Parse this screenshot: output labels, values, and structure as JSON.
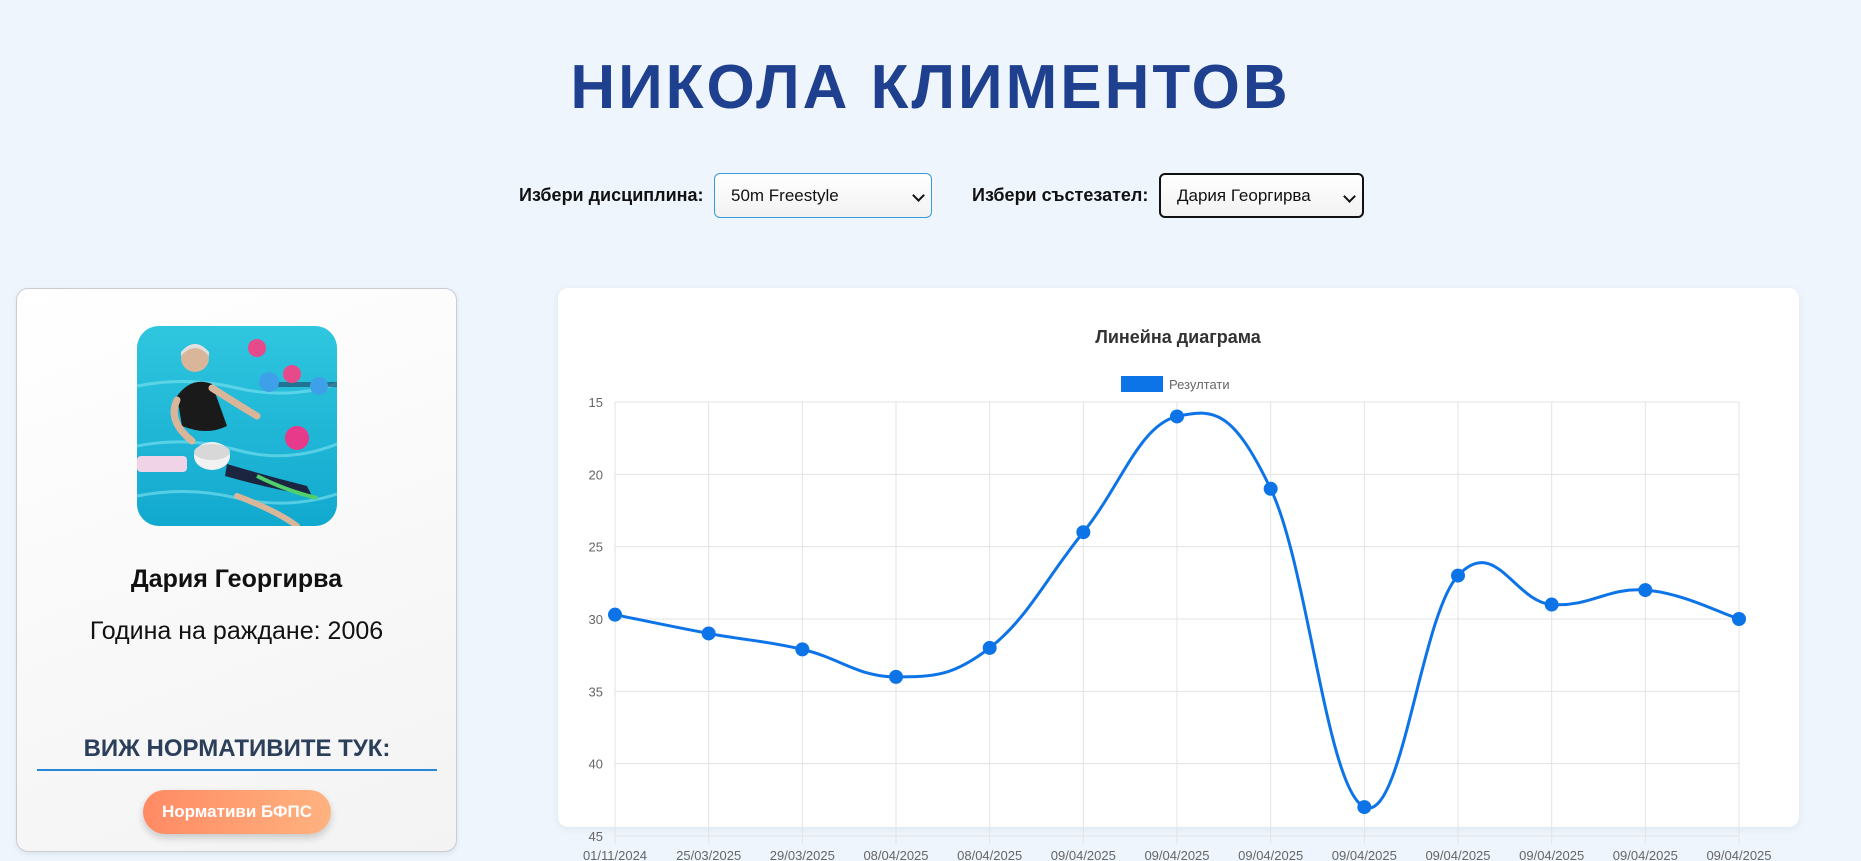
{
  "header": {
    "title": "НИКОЛА КЛИМЕНТОВ"
  },
  "filters": {
    "discipline_label": "Избери дисциплина:",
    "discipline_value": "50m Freestyle",
    "athlete_label": "Избери състезател:",
    "athlete_value": "Дария Георгирва"
  },
  "athlete": {
    "name": "Дария Георгирва",
    "birth_year_text": "Година на раждане: 2006",
    "photo_icon": "swimming-lesson-photo"
  },
  "norms": {
    "heading": "ВИЖ НОРМАТИВИТЕ ТУК:",
    "button_label": "Нормативи БФПС"
  },
  "colors": {
    "title": "#1f3f8f",
    "series": "#0d74e8",
    "button_start": "#ff8a64",
    "button_end": "#ffb27f"
  },
  "chart_data": {
    "type": "line",
    "title": "Линейна диаграма",
    "legend_position": "top-center",
    "grid": true,
    "y_reversed": true,
    "ylim": [
      15,
      45
    ],
    "yticks": [
      15,
      20,
      25,
      30,
      35,
      40,
      45
    ],
    "categories": [
      "01/11/2024",
      "25/03/2025",
      "29/03/2025",
      "08/04/2025",
      "08/04/2025",
      "09/04/2025",
      "09/04/2025",
      "09/04/2025",
      "09/04/2025",
      "09/04/2025",
      "09/04/2025",
      "09/04/2025",
      "09/04/2025"
    ],
    "series": [
      {
        "name": "Резултати",
        "values": [
          29.7,
          31,
          32.1,
          34,
          32,
          24,
          16,
          21,
          43,
          27,
          29,
          28,
          30
        ]
      }
    ]
  }
}
